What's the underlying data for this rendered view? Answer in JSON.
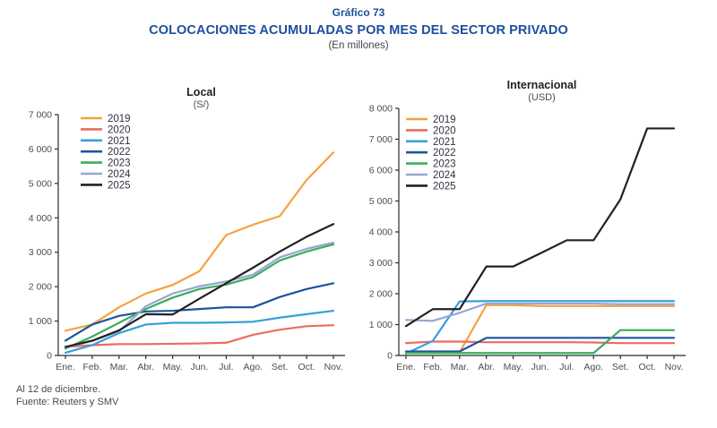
{
  "header": {
    "graphic_label": "Gráfico 73",
    "title": "COLOCACIONES ACUMULADAS POR MES DEL SECTOR PRIVADO",
    "subtitle": "(En millones)"
  },
  "footer": {
    "note": "Al 12 de diciembre.",
    "source": "Fuente: Reuters y SMV"
  },
  "colors": {
    "title_navy": "#1d4f9e",
    "axis_line": "#2b2b2b",
    "axis_text": "#4c4c55",
    "legend_text": "#30303f"
  },
  "chart_data": [
    {
      "id": "local",
      "type": "line",
      "title": "Local",
      "unit_label": "(S/)",
      "grid": false,
      "legend_position": "top-left",
      "legend_x_offset": 25,
      "categories": [
        "Ene.",
        "Feb.",
        "Mar.",
        "Abr.",
        "May.",
        "Jun.",
        "Jul.",
        "Ago.",
        "Set.",
        "Oct.",
        "Nov."
      ],
      "ylim": [
        0,
        7000
      ],
      "ytick_step": 1000,
      "ytick_labels": [
        "0",
        "1 000",
        "2 000",
        "3 000",
        "4 000",
        "5 000",
        "6 000",
        "7 000"
      ],
      "series": [
        {
          "name": "2019",
          "color": "#F6A13C",
          "values": [
            720,
            900,
            1400,
            1800,
            2050,
            2450,
            3500,
            3800,
            4050,
            5100,
            5900
          ]
        },
        {
          "name": "2020",
          "color": "#EC6B60",
          "values": [
            250,
            300,
            330,
            330,
            340,
            350,
            370,
            600,
            750,
            850,
            880
          ]
        },
        {
          "name": "2021",
          "color": "#35A0DB",
          "values": [
            80,
            300,
            650,
            900,
            950,
            950,
            960,
            980,
            1100,
            1200,
            1300
          ]
        },
        {
          "name": "2022",
          "color": "#1D549F",
          "values": [
            430,
            900,
            1150,
            1280,
            1300,
            1350,
            1400,
            1400,
            1700,
            1930,
            2100
          ]
        },
        {
          "name": "2023",
          "color": "#3BAD5B",
          "values": [
            200,
            550,
            950,
            1350,
            1680,
            1930,
            2060,
            2280,
            2760,
            3020,
            3230
          ]
        },
        {
          "name": "2024",
          "color": "#9AA4D4",
          "values": [
            230,
            420,
            700,
            1430,
            1800,
            2010,
            2150,
            2350,
            2850,
            3100,
            3280
          ]
        },
        {
          "name": "2025",
          "color": "#232020",
          "values": [
            250,
            430,
            730,
            1200,
            1190,
            1650,
            2100,
            2550,
            3020,
            3450,
            3820
          ]
        }
      ]
    },
    {
      "id": "internacional",
      "type": "line",
      "title": "Internacional",
      "unit_label": "(USD)",
      "grid": false,
      "legend_position": "top-left",
      "legend_x_offset": 8,
      "categories": [
        "Ene.",
        "Feb.",
        "Mar.",
        "Abr.",
        "May.",
        "Jun.",
        "Jul.",
        "Ago.",
        "Set.",
        "Oct.",
        "Nov."
      ],
      "ylim": [
        0,
        8000
      ],
      "ytick_step": 1000,
      "ytick_labels": [
        "0",
        "1 000",
        "2 000",
        "3 000",
        "4 000",
        "5 000",
        "6 000",
        "7 000",
        "8 000"
      ],
      "series": [
        {
          "name": "2019",
          "color": "#F6A13C",
          "values": [
            100,
            100,
            100,
            1630,
            1630,
            1600,
            1600,
            1600,
            1600,
            1600,
            1600
          ]
        },
        {
          "name": "2020",
          "color": "#EC6B60",
          "values": [
            400,
            450,
            450,
            430,
            430,
            430,
            430,
            420,
            400,
            400,
            400
          ]
        },
        {
          "name": "2021",
          "color": "#35A0DB",
          "values": [
            60,
            470,
            1750,
            1760,
            1760,
            1760,
            1760,
            1760,
            1760,
            1760,
            1760
          ]
        },
        {
          "name": "2022",
          "color": "#1D549F",
          "values": [
            130,
            130,
            130,
            570,
            570,
            570,
            570,
            570,
            570,
            570,
            570
          ]
        },
        {
          "name": "2023",
          "color": "#3BAD5B",
          "values": [
            80,
            80,
            80,
            80,
            80,
            80,
            80,
            80,
            820,
            820,
            820
          ]
        },
        {
          "name": "2024",
          "color": "#9AA4D4",
          "values": [
            1150,
            1120,
            1380,
            1680,
            1680,
            1680,
            1680,
            1680,
            1660,
            1660,
            1660
          ]
        },
        {
          "name": "2025",
          "color": "#232020",
          "values": [
            950,
            1500,
            1500,
            2880,
            2880,
            3300,
            3730,
            3730,
            5050,
            7350,
            7350
          ]
        }
      ]
    }
  ]
}
